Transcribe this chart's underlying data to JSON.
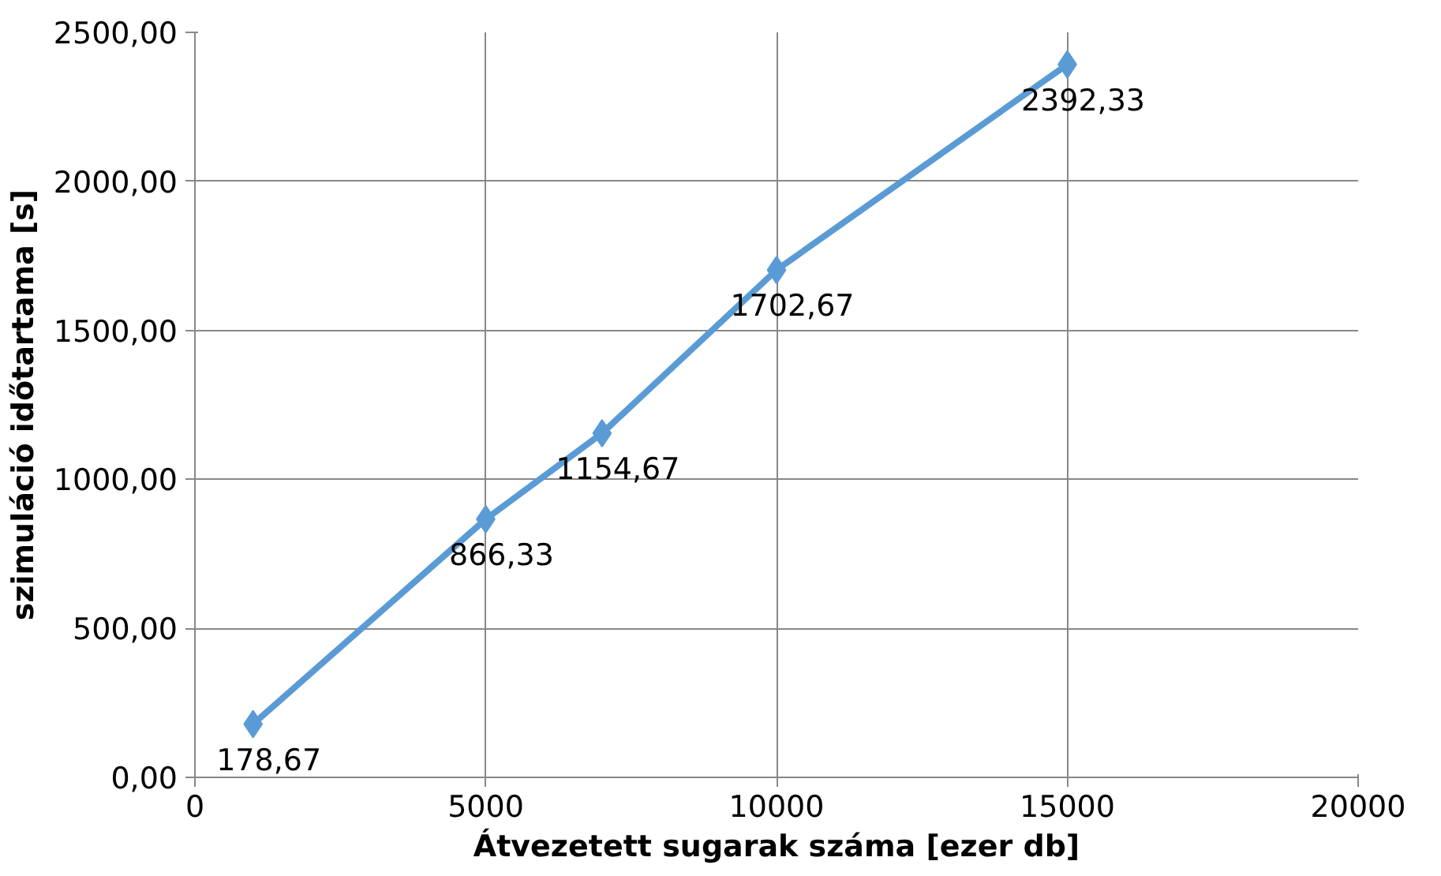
{
  "chart_data": {
    "type": "line",
    "xlabel": "Átvezetett sugarak száma [ezer db]",
    "ylabel": "szimuláció időtartama [s]",
    "x": [
      1000,
      5000,
      7000,
      10000,
      15000
    ],
    "series": [
      {
        "color": "#5b9bd5",
        "values": [
          178.67,
          866.33,
          1154.67,
          1702.67,
          2392.33
        ],
        "value_labels": [
          "178,67",
          "866,33",
          "1154,67",
          "1702,67",
          "2392,33"
        ]
      }
    ],
    "xlim": [
      0,
      20000
    ],
    "xticks": [
      0,
      5000,
      10000,
      15000,
      20000
    ],
    "ylim": [
      0,
      2500
    ],
    "yticks": [
      {
        "value": 0,
        "label": "0,00"
      },
      {
        "value": 500,
        "label": "500,00"
      },
      {
        "value": 1000,
        "label": "1000,00"
      },
      {
        "value": 1500,
        "label": "1500,00"
      },
      {
        "value": 2000,
        "label": "2000,00"
      },
      {
        "value": 2500,
        "label": "2500,00"
      }
    ],
    "grid": true,
    "marker": "diamond",
    "line_style": "solid"
  }
}
